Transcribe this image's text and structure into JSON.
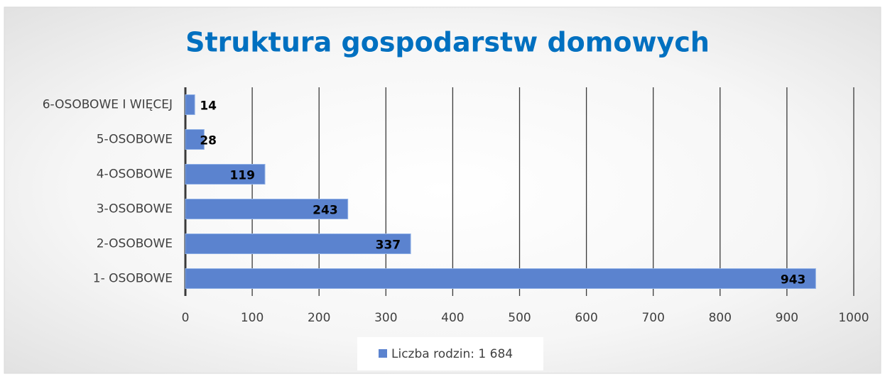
{
  "chart_data": {
    "type": "bar",
    "orientation": "horizontal",
    "title": "Struktura gospodarstw domowych",
    "categories": [
      "6-OSOBOWE I WIĘCEJ",
      "5-OSOBOWE",
      "4-OSOBOWE",
      "3-OSOBOWE",
      "2-OSOBOWE",
      "1- OSOBOWE"
    ],
    "series": [
      {
        "name": "Liczba rodzin: 1 684",
        "color": "#5b83cf",
        "values": [
          14,
          28,
          119,
          243,
          337,
          943
        ]
      }
    ],
    "xlim": [
      0,
      1000
    ],
    "xticks": [
      0,
      100,
      200,
      300,
      400,
      500,
      600,
      700,
      800,
      900,
      1000
    ],
    "grid": true,
    "legend": "bottom"
  }
}
